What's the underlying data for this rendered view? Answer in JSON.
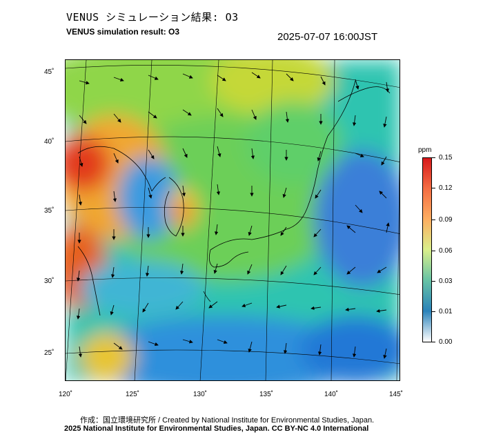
{
  "header": {
    "title_jp": "VENUS シミュレーション結果: O3",
    "title_en": "VENUS simulation result: O3",
    "timestamp": "2025-07-07 16:00JST"
  },
  "map": {
    "lat_labels": [
      "45˚",
      "40˚",
      "35˚",
      "30˚",
      "25˚"
    ],
    "lon_labels": [
      "120˚",
      "125˚",
      "130˚",
      "135˚",
      "140˚",
      "145˚"
    ]
  },
  "colorbar": {
    "unit": "ppm",
    "labels": [
      "0.15",
      "0.12",
      "0.09",
      "0.06",
      "0.03",
      "0.01",
      "0.00"
    ],
    "colors": [
      "#d7191c",
      "#f46d43",
      "#fdae61",
      "#d9ef8b",
      "#66c2a5",
      "#2b83ba",
      "#ffffff"
    ]
  },
  "footer": {
    "credit": "作成：国立環境研究所 / Created by National Institute for Environmental Studies, Japan.",
    "copyright": "2025 National Institute for Environmental Studies, Japan. CC BY-NC 4.0 International"
  }
}
